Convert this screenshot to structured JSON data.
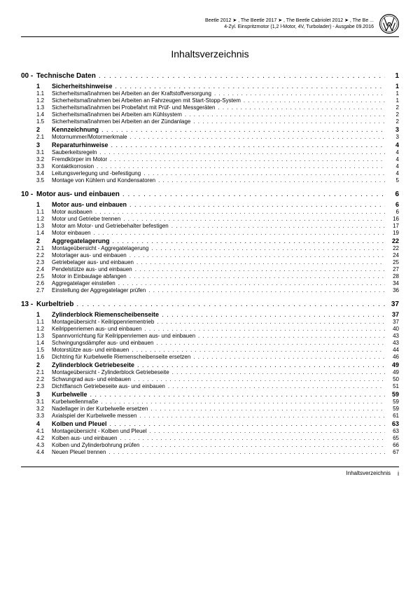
{
  "header": {
    "line1": "Beetle 2012 ➤ , The Beetle 2017 ➤ , The Beetle Cabriolet 2012 ➤ , The Be ...",
    "line2": "4-Zyl. Einspritzmotor (1,2 l-Motor, 4V, Turbolader) - Ausgabe 09.2016"
  },
  "title": "Inhaltsverzeichnis",
  "chapters": [
    {
      "num": "00 -",
      "label": "Technische Daten",
      "page": "1",
      "items": [
        {
          "num": "1",
          "label": "Sicherheitshinweise",
          "page": "1",
          "bold": true
        },
        {
          "num": "1.1",
          "label": "Sicherheitsmaßnahmen bei Arbeiten an der Kraftstoffversorgung",
          "page": "1"
        },
        {
          "num": "1.2",
          "label": "Sicherheitsmaßnahmen bei Arbeiten an Fahrzeugen mit Start-Stopp-System",
          "page": "1"
        },
        {
          "num": "1.3",
          "label": "Sicherheitsmaßnahmen bei Probefahrt mit Prüf- und Messgeräten",
          "page": "2"
        },
        {
          "num": "1.4",
          "label": "Sicherheitsmaßnahmen bei Arbeiten am Kühlsystem",
          "page": "2"
        },
        {
          "num": "1.5",
          "label": "Sicherheitsmaßnahmen bei Arbeiten an der Zündanlage",
          "page": "2"
        },
        {
          "num": "2",
          "label": "Kennzeichnung",
          "page": "3",
          "bold": true
        },
        {
          "num": "2.1",
          "label": "Motornummer/Motormerkmale",
          "page": "3"
        },
        {
          "num": "3",
          "label": "Reparaturhinweise",
          "page": "4",
          "bold": true
        },
        {
          "num": "3.1",
          "label": "Sauberkeitsregeln",
          "page": "4"
        },
        {
          "num": "3.2",
          "label": "Fremdkörper im Motor",
          "page": "4"
        },
        {
          "num": "3.3",
          "label": "Kontaktkorrosion",
          "page": "4"
        },
        {
          "num": "3.4",
          "label": "Leitungsverlegung und -befestigung",
          "page": "4"
        },
        {
          "num": "3.5",
          "label": "Montage von Kühlern und Kondensatoren",
          "page": "5"
        }
      ]
    },
    {
      "num": "10 -",
      "label": "Motor aus- und einbauen",
      "page": "6",
      "items": [
        {
          "num": "1",
          "label": "Motor aus- und einbauen",
          "page": "6",
          "bold": true
        },
        {
          "num": "1.1",
          "label": "Motor ausbauen",
          "page": "6"
        },
        {
          "num": "1.2",
          "label": "Motor und Getriebe trennen",
          "page": "16"
        },
        {
          "num": "1.3",
          "label": "Motor am Motor- und Getriebehalter befestigen",
          "page": "17"
        },
        {
          "num": "1.4",
          "label": "Motor einbauen",
          "page": "19"
        },
        {
          "num": "2",
          "label": "Aggregatelagerung",
          "page": "22",
          "bold": true
        },
        {
          "num": "2.1",
          "label": "Montageübersicht - Aggregatelagerung",
          "page": "22"
        },
        {
          "num": "2.2",
          "label": "Motorlager aus- und einbauen",
          "page": "24"
        },
        {
          "num": "2.3",
          "label": "Getriebelager aus- und einbauen",
          "page": "25"
        },
        {
          "num": "2.4",
          "label": "Pendelstütze aus- und einbauen",
          "page": "27"
        },
        {
          "num": "2.5",
          "label": "Motor in Einbaulage abfangen",
          "page": "28"
        },
        {
          "num": "2.6",
          "label": "Aggregatelager einstellen",
          "page": "34"
        },
        {
          "num": "2.7",
          "label": "Einstellung der Aggregatelager prüfen",
          "page": "36"
        }
      ]
    },
    {
      "num": "13 -",
      "label": "Kurbeltrieb",
      "page": "37",
      "items": [
        {
          "num": "1",
          "label": "Zylinderblock Riemenscheibenseite",
          "page": "37",
          "bold": true
        },
        {
          "num": "1.1",
          "label": "Montageübersicht - Keilrippenriementrieb",
          "page": "37"
        },
        {
          "num": "1.2",
          "label": "Keilrippenriemen aus- und einbauen",
          "page": "40"
        },
        {
          "num": "1.3",
          "label": "Spannvorrichtung für Keilrippenriemen aus- und einbauen",
          "page": "43"
        },
        {
          "num": "1.4",
          "label": "Schwingungsdämpfer aus- und einbauen",
          "page": "43"
        },
        {
          "num": "1.5",
          "label": "Motorstütze aus- und einbauen",
          "page": "44"
        },
        {
          "num": "1.6",
          "label": "Dichtring für Kurbelwelle Riemenscheibenseite ersetzen",
          "page": "46"
        },
        {
          "num": "2",
          "label": "Zylinderblock Getriebeseite",
          "page": "49",
          "bold": true
        },
        {
          "num": "2.1",
          "label": "Montageübersicht - Zylinderblock Getriebeseite",
          "page": "49"
        },
        {
          "num": "2.2",
          "label": "Schwungrad aus- und einbauen",
          "page": "50"
        },
        {
          "num": "2.3",
          "label": "Dichtflansch Getriebeseite aus- und einbauen",
          "page": "51"
        },
        {
          "num": "3",
          "label": "Kurbelwelle",
          "page": "59",
          "bold": true
        },
        {
          "num": "3.1",
          "label": "Kurbelwellenmaße",
          "page": "59"
        },
        {
          "num": "3.2",
          "label": "Nadellager in der Kurbelwelle ersetzen",
          "page": "59"
        },
        {
          "num": "3.3",
          "label": "Axialspiel der Kurbelwelle messen",
          "page": "61"
        },
        {
          "num": "4",
          "label": "Kolben und Pleuel",
          "page": "63",
          "bold": true
        },
        {
          "num": "4.1",
          "label": "Montageübersicht - Kolben und Pleuel",
          "page": "63"
        },
        {
          "num": "4.2",
          "label": "Kolben aus- und einbauen",
          "page": "65"
        },
        {
          "num": "4.3",
          "label": "Kolben und Zylinderbohrung prüfen",
          "page": "66"
        },
        {
          "num": "4.4",
          "label": "Neuen Pleuel trennen",
          "page": "67"
        }
      ]
    }
  ],
  "footer": {
    "label": "Inhaltsverzeichnis",
    "page": "i"
  },
  "dots_pattern": ". . . . . . . . . . . . . . . . . . . . . . . . . . . . . . . . . . . . . . . . . . . . . . . . . . . . . . . . . . . . . . . . . . . . . . . . . . . . . . . . . . . . . . . . . . . . . . . . . . . . . . . . . . . . . . . . . . . . . . . . ."
}
